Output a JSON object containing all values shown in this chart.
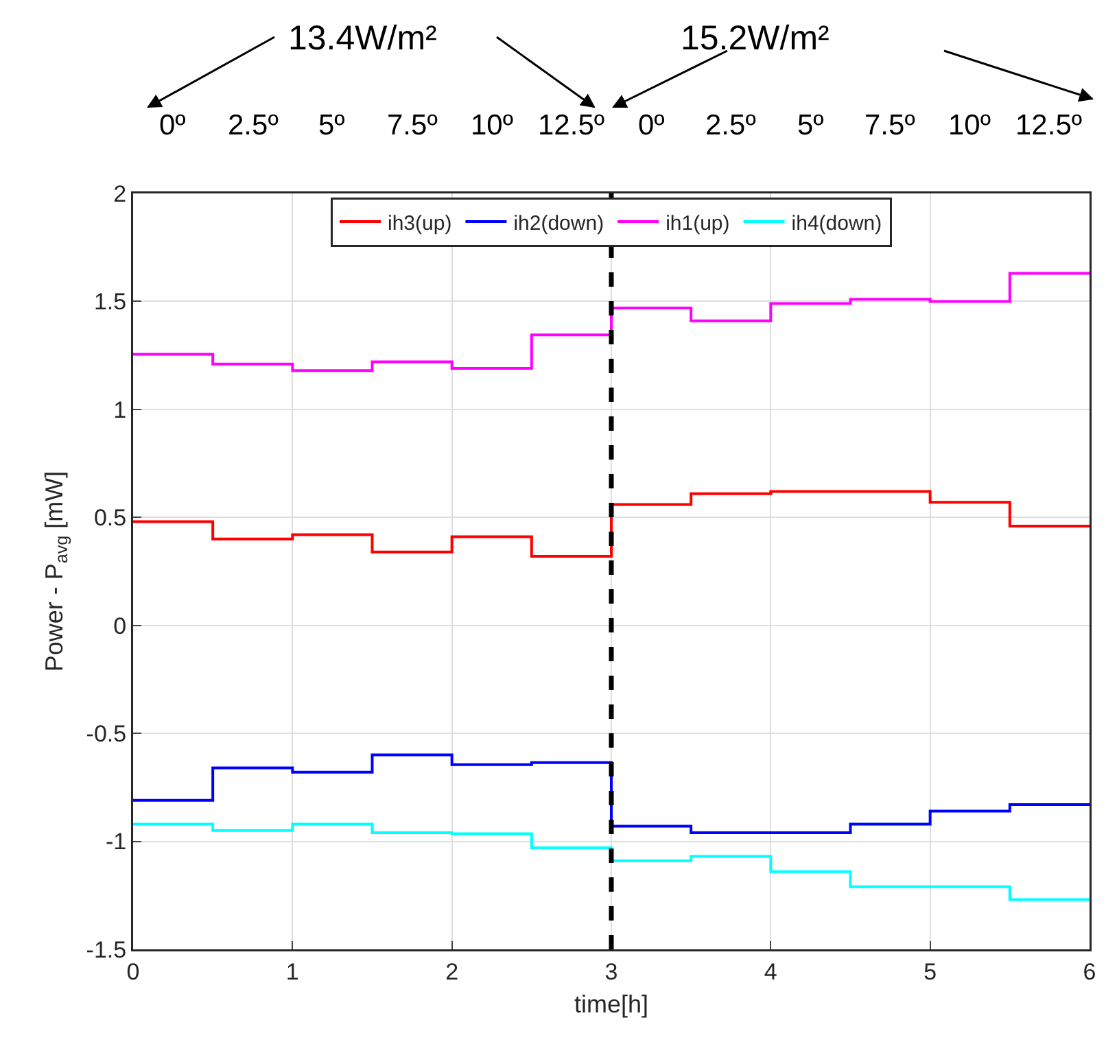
{
  "chart_data": {
    "type": "step",
    "xlabel": "time[h]",
    "ylabel": "Power - P$_{avg}$ [mW]",
    "annotations": [
      "13.4W/m²",
      "15.2W/m²",
      "0º",
      "2.5º",
      "5º",
      "7.5º",
      "10º",
      "12.5º",
      "0º",
      "2.5º",
      "5º",
      "7.5º",
      "10º",
      "12.5º"
    ],
    "x": [
      0,
      0.5,
      1,
      1.5,
      2,
      2.5,
      3,
      3.5,
      4,
      4.5,
      5,
      5.5,
      6
    ],
    "series": [
      {
        "name": "ih3(up)",
        "color": "#ff0000",
        "values": [
          0.48,
          0.4,
          0.42,
          0.34,
          0.41,
          0.32,
          0.56,
          0.61,
          0.62,
          0.62,
          0.57,
          0.46,
          0.46
        ]
      },
      {
        "name": "ih2(down)",
        "color": "#0000ff",
        "values": [
          -0.81,
          -0.66,
          -0.68,
          -0.6,
          -0.645,
          -0.635,
          -0.93,
          -0.96,
          -0.96,
          -0.92,
          -0.86,
          -0.83,
          -0.83
        ]
      },
      {
        "name": "ih1(up)",
        "color": "#ff00ff",
        "values": [
          1.255,
          1.21,
          1.18,
          1.22,
          1.19,
          1.345,
          1.47,
          1.41,
          1.49,
          1.51,
          1.5,
          1.63,
          1.63
        ]
      },
      {
        "name": "ih4(down)",
        "color": "#00ffff",
        "values": [
          -0.92,
          -0.95,
          -0.92,
          -0.96,
          -0.965,
          -1.03,
          -1.09,
          -1.07,
          -1.14,
          -1.21,
          -1.21,
          -1.27,
          -1.27
        ]
      }
    ],
    "xlim": [
      0,
      6
    ],
    "xticks": [
      0,
      1,
      2,
      3,
      4,
      5,
      6
    ],
    "ylim": [
      -1.5,
      2
    ],
    "yticks": [
      -1.5,
      -1,
      -0.5,
      0,
      0.5,
      1,
      1.5,
      2
    ],
    "ref_lines": [
      {
        "axis": "x",
        "value": 3,
        "color": "#000000",
        "line_style": "dashed"
      }
    ],
    "grid": true,
    "legend": "top",
    "marker": "none",
    "line_style": "solid"
  }
}
